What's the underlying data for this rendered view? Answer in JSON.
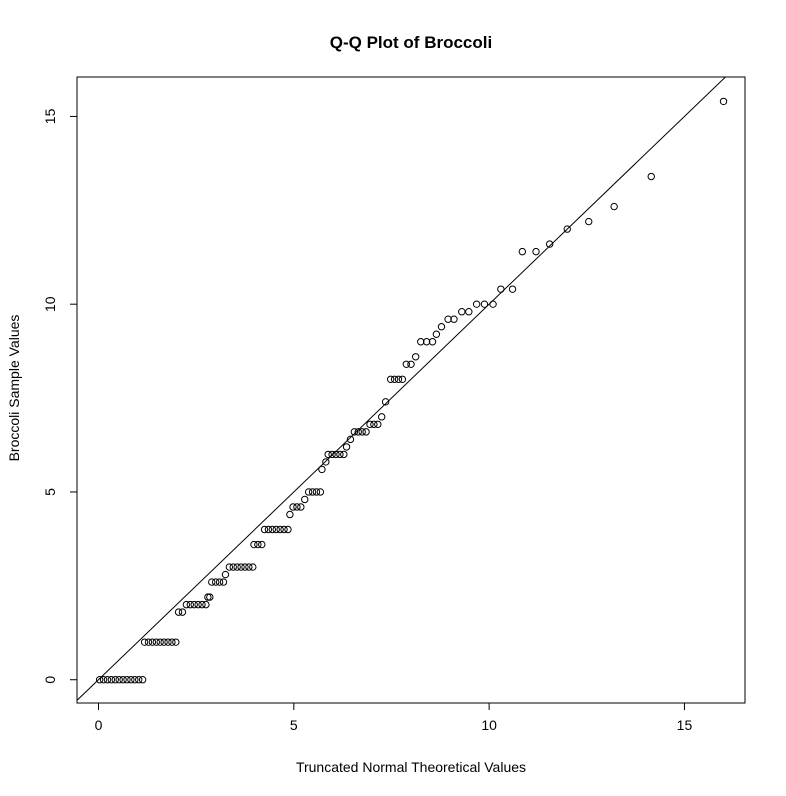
{
  "chart_data": {
    "type": "scatter",
    "title": "Q-Q Plot of Broccoli",
    "xlabel": "Truncated Normal Theoretical Values",
    "ylabel": "Broccoli Sample Values",
    "xlim": [
      -0.55,
      16.55
    ],
    "ylim": [
      -0.62,
      16.05
    ],
    "xticks": [
      0,
      5,
      10,
      15
    ],
    "yticks": [
      0,
      5,
      10,
      15
    ],
    "grid": false,
    "reference_line": {
      "x": [
        -0.55,
        16.55
      ],
      "y": [
        -0.55,
        16.55
      ]
    },
    "points": [
      [
        0.03,
        0
      ],
      [
        0.13,
        0
      ],
      [
        0.23,
        0
      ],
      [
        0.33,
        0
      ],
      [
        0.43,
        0
      ],
      [
        0.53,
        0
      ],
      [
        0.63,
        0
      ],
      [
        0.73,
        0
      ],
      [
        0.83,
        0
      ],
      [
        0.93,
        0
      ],
      [
        1.03,
        0
      ],
      [
        1.13,
        0
      ],
      [
        1.18,
        1
      ],
      [
        1.28,
        1
      ],
      [
        1.38,
        1
      ],
      [
        1.48,
        1
      ],
      [
        1.58,
        1
      ],
      [
        1.68,
        1
      ],
      [
        1.78,
        1
      ],
      [
        1.88,
        1
      ],
      [
        1.98,
        1
      ],
      [
        2.05,
        1.8
      ],
      [
        2.15,
        1.8
      ],
      [
        2.25,
        2
      ],
      [
        2.35,
        2
      ],
      [
        2.45,
        2
      ],
      [
        2.55,
        2
      ],
      [
        2.65,
        2
      ],
      [
        2.75,
        2
      ],
      [
        2.8,
        2.2
      ],
      [
        2.85,
        2.2
      ],
      [
        2.9,
        2.6
      ],
      [
        3.0,
        2.6
      ],
      [
        3.1,
        2.6
      ],
      [
        3.2,
        2.6
      ],
      [
        3.25,
        2.8
      ],
      [
        3.35,
        3
      ],
      [
        3.45,
        3
      ],
      [
        3.55,
        3
      ],
      [
        3.65,
        3
      ],
      [
        3.75,
        3
      ],
      [
        3.85,
        3
      ],
      [
        3.95,
        3
      ],
      [
        3.98,
        3.6
      ],
      [
        4.08,
        3.6
      ],
      [
        4.18,
        3.6
      ],
      [
        4.25,
        4
      ],
      [
        4.35,
        4
      ],
      [
        4.45,
        4
      ],
      [
        4.55,
        4
      ],
      [
        4.65,
        4
      ],
      [
        4.75,
        4
      ],
      [
        4.85,
        4
      ],
      [
        4.9,
        4.4
      ],
      [
        4.98,
        4.6
      ],
      [
        5.08,
        4.6
      ],
      [
        5.18,
        4.6
      ],
      [
        5.28,
        4.8
      ],
      [
        5.38,
        5
      ],
      [
        5.48,
        5
      ],
      [
        5.58,
        5
      ],
      [
        5.68,
        5
      ],
      [
        5.72,
        5.6
      ],
      [
        5.82,
        5.8
      ],
      [
        5.88,
        6
      ],
      [
        5.98,
        6
      ],
      [
        6.08,
        6
      ],
      [
        6.18,
        6
      ],
      [
        6.28,
        6
      ],
      [
        6.35,
        6.2
      ],
      [
        6.45,
        6.4
      ],
      [
        6.55,
        6.6
      ],
      [
        6.65,
        6.6
      ],
      [
        6.75,
        6.6
      ],
      [
        6.85,
        6.6
      ],
      [
        6.95,
        6.8
      ],
      [
        7.05,
        6.8
      ],
      [
        7.15,
        6.8
      ],
      [
        7.25,
        7
      ],
      [
        7.35,
        7.4
      ],
      [
        7.48,
        8
      ],
      [
        7.58,
        8
      ],
      [
        7.68,
        8
      ],
      [
        7.78,
        8
      ],
      [
        7.88,
        8.4
      ],
      [
        8.0,
        8.4
      ],
      [
        8.12,
        8.6
      ],
      [
        8.25,
        9
      ],
      [
        8.4,
        9
      ],
      [
        8.55,
        9
      ],
      [
        8.65,
        9.2
      ],
      [
        8.78,
        9.4
      ],
      [
        8.95,
        9.6
      ],
      [
        9.1,
        9.6
      ],
      [
        9.3,
        9.8
      ],
      [
        9.48,
        9.8
      ],
      [
        9.68,
        10
      ],
      [
        9.88,
        10
      ],
      [
        10.1,
        10
      ],
      [
        10.3,
        10.4
      ],
      [
        10.6,
        10.4
      ],
      [
        10.85,
        11.4
      ],
      [
        11.2,
        11.4
      ],
      [
        11.55,
        11.6
      ],
      [
        12.0,
        12
      ],
      [
        12.55,
        12.2
      ],
      [
        13.2,
        12.6
      ],
      [
        14.15,
        13.4
      ],
      [
        16.0,
        15.4
      ]
    ]
  }
}
